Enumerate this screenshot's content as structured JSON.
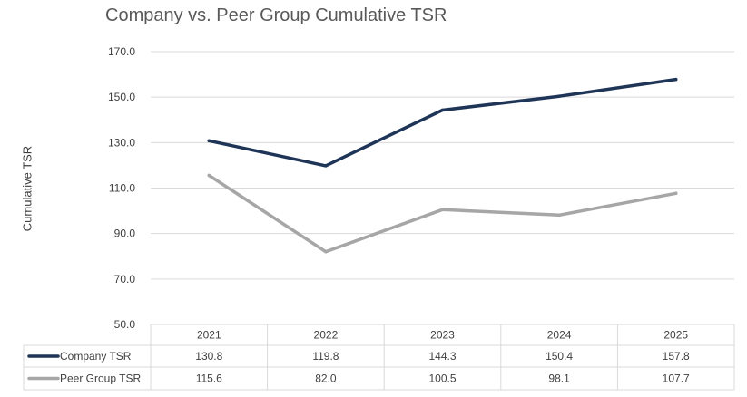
{
  "chart_data": {
    "type": "line",
    "title": "Company vs. Peer Group Cumulative TSR",
    "ylabel": "Cumulative TSR",
    "xlabel": "",
    "categories": [
      "2021",
      "2022",
      "2023",
      "2024",
      "2025"
    ],
    "ylim": [
      50.0,
      170.0
    ],
    "yticks": [
      "50.0",
      "70.0",
      "90.0",
      "110.0",
      "130.0",
      "150.0",
      "170.0"
    ],
    "grid": true,
    "legend": "data-table",
    "series": [
      {
        "name": "Company TSR",
        "color": "#1f3558",
        "values": [
          130.8,
          119.8,
          144.3,
          150.4,
          157.8
        ],
        "labels": [
          "130.8",
          "119.8",
          "144.3",
          "150.4",
          "157.8"
        ]
      },
      {
        "name": "Peer Group TSR",
        "color": "#a6a6a6",
        "values": [
          115.6,
          82.0,
          100.5,
          98.1,
          107.7
        ],
        "labels": [
          "115.6",
          "82.0",
          "100.5",
          "98.1",
          "107.7"
        ]
      }
    ]
  }
}
